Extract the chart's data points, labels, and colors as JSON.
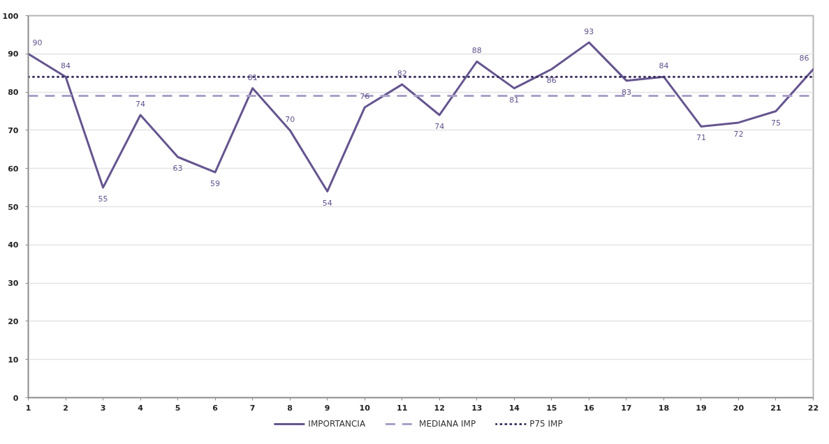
{
  "chart_data": {
    "type": "line",
    "x": [
      1,
      2,
      3,
      4,
      5,
      6,
      7,
      8,
      9,
      10,
      11,
      12,
      13,
      14,
      15,
      16,
      17,
      18,
      19,
      20,
      21,
      22
    ],
    "xlim": [
      1,
      22
    ],
    "xticks": [
      1,
      2,
      3,
      4,
      5,
      6,
      7,
      8,
      9,
      10,
      11,
      12,
      13,
      14,
      15,
      16,
      17,
      18,
      19,
      20,
      21,
      22
    ],
    "ylim": [
      0,
      100
    ],
    "yticks": [
      0,
      10,
      20,
      30,
      40,
      50,
      60,
      70,
      80,
      90,
      100
    ],
    "grid": "y",
    "legend": "bottom",
    "line_style": "solid",
    "series": [
      {
        "name": "IMPORTANCIA",
        "color": "#65558f",
        "values": [
          90,
          84,
          55,
          74,
          63,
          59,
          81,
          70,
          54,
          76,
          82,
          74,
          88,
          81,
          86,
          93,
          83,
          84,
          71,
          72,
          75,
          86
        ],
        "value_labels": [
          "90",
          "84",
          "55",
          "74",
          "63",
          "59",
          "81",
          "70",
          "54",
          "76",
          "82",
          "74",
          "88",
          "81",
          "86",
          "93",
          "83",
          "84",
          "71",
          "72",
          "75",
          "86"
        ]
      },
      {
        "name": "MEDIANA IMP",
        "color": "#aaa0c8",
        "line_style": "dashed",
        "values": [
          79,
          79,
          79,
          79,
          79,
          79,
          79,
          79,
          79,
          79,
          79,
          79,
          79,
          79,
          79,
          79,
          79,
          79,
          79,
          79,
          79,
          79
        ]
      },
      {
        "name": "P75 IMP",
        "color": "#3b2d5c",
        "line_style": "dotted",
        "values": [
          84,
          84,
          84,
          84,
          84,
          84,
          84,
          84,
          84,
          84,
          84,
          84,
          84,
          84,
          84,
          84,
          84,
          84,
          84,
          84,
          84,
          84
        ]
      }
    ]
  }
}
